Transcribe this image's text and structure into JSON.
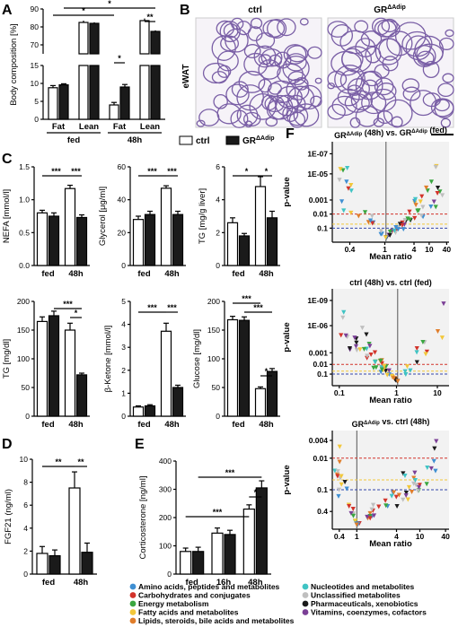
{
  "panels": {
    "A": "A",
    "B": "B",
    "C": "C",
    "D": "D",
    "E": "E",
    "F": "F"
  },
  "legend_bars": {
    "ctrl": "ctrl",
    "gr": "GR",
    "gr_sup": "ΔAdip"
  },
  "histology": {
    "ctrl_title": "ctrl",
    "gr_title": "GR",
    "gr_sup": "ΔAdip",
    "tissue_label": "eWAT"
  },
  "metabolite_legend": [
    {
      "label": "Amino acids, peptides and metabolites",
      "color": "#3f8fd2"
    },
    {
      "label": "Carbohydrates and conjugates",
      "color": "#d2332a"
    },
    {
      "label": "Energy metabolism",
      "color": "#3aa640"
    },
    {
      "label": "Fatty acids and metabolites",
      "color": "#f2c73a"
    },
    {
      "label": "Lipids, steroids, bile acids and metabolites",
      "color": "#e07d2a"
    },
    {
      "label": "Nucleotides and metabolites",
      "color": "#40c4c4"
    },
    {
      "label": "Unclassified metabolites",
      "color": "#bfbfbf"
    },
    {
      "label": "Pharmaceuticals, xenobiotics",
      "color": "#1a1a1a"
    },
    {
      "label": "Vitamins, coenzymes, cofactors",
      "color": "#7b3f96"
    }
  ],
  "chart_data": [
    {
      "id": "A",
      "type": "bar",
      "ylabel": "Body composition [%]",
      "categories": [
        "Fat",
        "Lean",
        "Fat",
        "Lean"
      ],
      "groups": [
        "fed",
        "48h"
      ],
      "series": [
        {
          "name": "ctrl",
          "values": [
            8.8,
            82.5,
            4.0,
            83.5
          ]
        },
        {
          "name": "GRΔAdip",
          "values": [
            9.6,
            82.0,
            9.0,
            77.5
          ]
        }
      ],
      "yticks_low": [
        "0",
        "5",
        "10",
        "15"
      ],
      "yticks_high": [
        "70",
        "80",
        "90"
      ],
      "sig": [
        "*",
        "*",
        "*",
        "**"
      ]
    },
    {
      "id": "C1",
      "type": "bar",
      "ylabel": "NEFA [mmol/l]",
      "ylim": [
        0,
        1.5
      ],
      "yticks": [
        "0.0",
        "0.5",
        "1.0",
        "1.5"
      ],
      "categories": [
        "fed",
        "48h"
      ],
      "series": [
        {
          "name": "ctrl",
          "values": [
            0.8,
            1.17
          ]
        },
        {
          "name": "GRΔAdip",
          "values": [
            0.75,
            0.73
          ]
        }
      ],
      "errors": [
        [
          0.04,
          0.05
        ],
        [
          0.05,
          0.04
        ]
      ],
      "sig": [
        "***",
        "***"
      ]
    },
    {
      "id": "C2",
      "type": "bar",
      "ylabel": "Glycerol [μg/ml]",
      "ylim": [
        0,
        60
      ],
      "yticks": [
        "0",
        "20",
        "40",
        "60"
      ],
      "categories": [
        "fed",
        "48h"
      ],
      "series": [
        {
          "name": "ctrl",
          "values": [
            28,
            47
          ]
        },
        {
          "name": "GRΔAdip",
          "values": [
            31,
            31
          ]
        }
      ],
      "errors": [
        [
          2,
          1.5
        ],
        [
          2,
          2
        ]
      ],
      "sig": [
        "***",
        "***"
      ]
    },
    {
      "id": "C3",
      "type": "bar",
      "ylabel": "TG [mg/g liver]",
      "ylim": [
        0,
        6
      ],
      "yticks": [
        "0",
        "2",
        "4",
        "6"
      ],
      "categories": [
        "fed",
        "48h"
      ],
      "series": [
        {
          "name": "ctrl",
          "values": [
            2.6,
            4.8
          ]
        },
        {
          "name": "GRΔAdip",
          "values": [
            1.8,
            2.9
          ]
        }
      ],
      "errors": [
        [
          0.3,
          0.6
        ],
        [
          0.15,
          0.4
        ]
      ],
      "sig": [
        "*",
        "*"
      ]
    },
    {
      "id": "C4",
      "type": "bar",
      "ylabel": "TG [mg/dl]",
      "ylim": [
        0,
        200
      ],
      "yticks": [
        "0",
        "50",
        "100",
        "150",
        "200"
      ],
      "categories": [
        "fed",
        "48h"
      ],
      "series": [
        {
          "name": "ctrl",
          "values": [
            165,
            150
          ]
        },
        {
          "name": "GRΔAdip",
          "values": [
            175,
            72
          ]
        }
      ],
      "errors": [
        [
          8,
          12
        ],
        [
          8,
          3
        ]
      ],
      "sig": [
        "***",
        "*"
      ]
    },
    {
      "id": "C5",
      "type": "bar",
      "ylabel": "β-Ketone [mmol/l]",
      "ylim": [
        0,
        5
      ],
      "yticks": [
        "0",
        "1",
        "2",
        "3",
        "4",
        "5"
      ],
      "categories": [
        "fed",
        "48h"
      ],
      "series": [
        {
          "name": "ctrl",
          "values": [
            0.4,
            3.7
          ]
        },
        {
          "name": "GRΔAdip",
          "values": [
            0.45,
            1.25
          ]
        }
      ],
      "errors": [
        [
          0.05,
          0.35
        ],
        [
          0.05,
          0.1
        ]
      ],
      "sig": [
        "***",
        "***"
      ]
    },
    {
      "id": "C6",
      "type": "bar",
      "ylabel": "Glucose [mg/dl]",
      "ylim": [
        0,
        200
      ],
      "yticks": [
        "0",
        "50",
        "100",
        "150",
        "200"
      ],
      "categories": [
        "fed",
        "48h"
      ],
      "series": [
        {
          "name": "ctrl",
          "values": [
            168,
            48
          ]
        },
        {
          "name": "GRΔAdip",
          "values": [
            167,
            78
          ]
        }
      ],
      "errors": [
        [
          6,
          3
        ],
        [
          6,
          5
        ]
      ],
      "sig": [
        "***",
        "***",
        "*"
      ]
    },
    {
      "id": "D",
      "type": "bar",
      "ylabel": "FGF21 (ng/ml)",
      "ylim": [
        0,
        10
      ],
      "yticks": [
        "0",
        "2",
        "4",
        "6",
        "8",
        "10"
      ],
      "categories": [
        "fed",
        "48h"
      ],
      "series": [
        {
          "name": "ctrl",
          "values": [
            1.8,
            7.5
          ]
        },
        {
          "name": "GRΔAdip",
          "values": [
            1.6,
            1.9
          ]
        }
      ],
      "errors": [
        [
          0.6,
          1.4
        ],
        [
          0.5,
          0.8
        ]
      ],
      "sig": [
        "**",
        "**"
      ]
    },
    {
      "id": "E",
      "type": "bar",
      "ylabel": "Corticosterone [ng/ml]",
      "ylim": [
        0,
        400
      ],
      "yticks": [
        "0",
        "100",
        "200",
        "300",
        "400"
      ],
      "categories": [
        "fed",
        "16h",
        "48h"
      ],
      "series": [
        {
          "name": "ctrl",
          "values": [
            80,
            145,
            230
          ]
        },
        {
          "name": "GRΔAdip",
          "values": [
            80,
            140,
            305
          ]
        }
      ],
      "errors": [
        [
          12,
          18,
          15
        ],
        [
          15,
          15,
          25
        ]
      ],
      "sig": [
        "***",
        "***",
        "*"
      ]
    },
    {
      "id": "F1",
      "type": "scatter",
      "title": "GRΔAdip (48h) vs. GRΔAdip (fed)",
      "xlabel": "Mean ratio",
      "ylabel": "p-value",
      "xticks": [
        "0.4",
        "1",
        "4",
        "10",
        "40"
      ],
      "yticks": [
        "1E-07",
        "1E-05",
        "0.001",
        "0.01",
        "0.1"
      ]
    },
    {
      "id": "F2",
      "type": "scatter",
      "title": "ctrl (48h) vs. ctrl (fed)",
      "xlabel": "Mean ratio",
      "ylabel": "p-value",
      "xticks": [
        "0.1",
        "1",
        "10"
      ],
      "yticks": [
        "1E-09",
        "1E-06",
        "0.001",
        "0.01",
        "0.1"
      ]
    },
    {
      "id": "F3",
      "type": "scatter",
      "title": "GRΔAdip vs. ctrl (48h)",
      "xlabel": "Mean ratio",
      "ylabel": "p-value",
      "xticks": [
        "0.4",
        "1",
        "4",
        "10",
        "40"
      ],
      "yticks": [
        "0.004",
        "0.01",
        "0.1",
        "0.4"
      ]
    }
  ]
}
